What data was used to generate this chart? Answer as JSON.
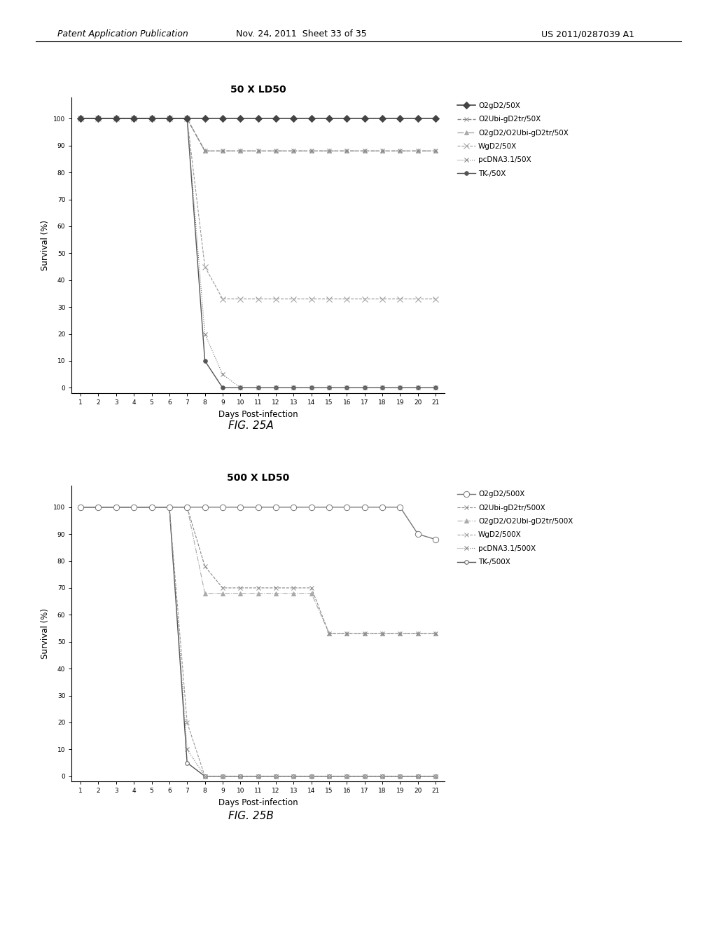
{
  "fig25a": {
    "title": "50 X LD50",
    "xlabel": "Days Post-infection",
    "ylabel": "Survival (%)",
    "days": [
      1,
      2,
      3,
      4,
      5,
      6,
      7,
      8,
      9,
      10,
      11,
      12,
      13,
      14,
      15,
      16,
      17,
      18,
      19,
      20,
      21
    ],
    "series": [
      {
        "label": "O2gD2/50X",
        "data": [
          100,
          100,
          100,
          100,
          100,
          100,
          100,
          100,
          100,
          100,
          100,
          100,
          100,
          100,
          100,
          100,
          100,
          100,
          100,
          100,
          100
        ],
        "color": "#444444",
        "marker": "D",
        "markersize": 5,
        "linestyle": "-",
        "linewidth": 1.2,
        "markerfacecolor": "#444444"
      },
      {
        "label": "O2Ubi-gD2tr/50X",
        "data": [
          100,
          100,
          100,
          100,
          100,
          100,
          100,
          88,
          88,
          88,
          88,
          88,
          88,
          88,
          88,
          88,
          88,
          88,
          88,
          88,
          88
        ],
        "color": "#888888",
        "marker": "x",
        "markersize": 5,
        "linestyle": "--",
        "linewidth": 1.0,
        "markerfacecolor": "#888888"
      },
      {
        "label": "O2gD2/O2Ubi-gD2tr/50X",
        "data": [
          100,
          100,
          100,
          100,
          100,
          100,
          100,
          88,
          88,
          88,
          88,
          88,
          88,
          88,
          88,
          88,
          88,
          88,
          88,
          88,
          88
        ],
        "color": "#aaaaaa",
        "marker": "^",
        "markersize": 5,
        "linestyle": "-.",
        "linewidth": 1.0,
        "markerfacecolor": "#aaaaaa"
      },
      {
        "label": "WgD2/50X",
        "data": [
          100,
          100,
          100,
          100,
          100,
          100,
          100,
          45,
          33,
          33,
          33,
          33,
          33,
          33,
          33,
          33,
          33,
          33,
          33,
          33,
          33
        ],
        "color": "#999999",
        "marker": "x",
        "markersize": 6,
        "linestyle": "--",
        "linewidth": 0.8,
        "markerfacecolor": "#999999"
      },
      {
        "label": "pcDNA3.1/50X",
        "data": [
          100,
          100,
          100,
          100,
          100,
          100,
          100,
          20,
          5,
          0,
          0,
          0,
          0,
          0,
          0,
          0,
          0,
          0,
          0,
          0,
          0
        ],
        "color": "#777777",
        "marker": "x",
        "markersize": 4,
        "linestyle": ":",
        "linewidth": 0.8,
        "markerfacecolor": "#777777"
      },
      {
        "label": "TK-/50X",
        "data": [
          100,
          100,
          100,
          100,
          100,
          100,
          100,
          10,
          0,
          0,
          0,
          0,
          0,
          0,
          0,
          0,
          0,
          0,
          0,
          0,
          0
        ],
        "color": "#555555",
        "marker": "o",
        "markersize": 4,
        "linestyle": "-",
        "linewidth": 1.0,
        "markerfacecolor": "#555555"
      }
    ]
  },
  "fig25b": {
    "title": "500 X LD50",
    "xlabel": "Days Post-infection",
    "ylabel": "Survival (%)",
    "days": [
      1,
      2,
      3,
      4,
      5,
      6,
      7,
      8,
      9,
      10,
      11,
      12,
      13,
      14,
      15,
      16,
      17,
      18,
      19,
      20,
      21
    ],
    "series": [
      {
        "label": "O2gD2/500X",
        "data": [
          100,
          100,
          100,
          100,
          100,
          100,
          100,
          100,
          100,
          100,
          100,
          100,
          100,
          100,
          100,
          100,
          100,
          100,
          100,
          90,
          88
        ],
        "color": "#777777",
        "marker": "o",
        "markersize": 6,
        "linestyle": "-",
        "linewidth": 1.0,
        "markerfacecolor": "white"
      },
      {
        "label": "O2Ubi-gD2tr/500X",
        "data": [
          100,
          100,
          100,
          100,
          100,
          100,
          100,
          78,
          70,
          70,
          70,
          70,
          70,
          70,
          53,
          53,
          53,
          53,
          53,
          53,
          53
        ],
        "color": "#888888",
        "marker": "x",
        "markersize": 5,
        "linestyle": "--",
        "linewidth": 0.8,
        "markerfacecolor": "#888888"
      },
      {
        "label": "O2gD2/O2Ubi-gD2tr/500X",
        "data": [
          100,
          100,
          100,
          100,
          100,
          100,
          100,
          68,
          68,
          68,
          68,
          68,
          68,
          68,
          53,
          53,
          53,
          53,
          53,
          53,
          53
        ],
        "color": "#aaaaaa",
        "marker": "^",
        "markersize": 5,
        "linestyle": "-.",
        "linewidth": 0.8,
        "markerfacecolor": "#aaaaaa"
      },
      {
        "label": "WgD2/500X",
        "data": [
          100,
          100,
          100,
          100,
          100,
          100,
          20,
          0,
          0,
          0,
          0,
          0,
          0,
          0,
          0,
          0,
          0,
          0,
          0,
          0,
          0
        ],
        "color": "#999999",
        "marker": "x",
        "markersize": 5,
        "linestyle": "--",
        "linewidth": 0.8,
        "markerfacecolor": "#999999"
      },
      {
        "label": "pcDNA3.1/500X",
        "data": [
          100,
          100,
          100,
          100,
          100,
          100,
          10,
          0,
          0,
          0,
          0,
          0,
          0,
          0,
          0,
          0,
          0,
          0,
          0,
          0,
          0
        ],
        "color": "#777777",
        "marker": "x",
        "markersize": 4,
        "linestyle": ":",
        "linewidth": 0.8,
        "markerfacecolor": "#777777"
      },
      {
        "label": "TK-/500X",
        "data": [
          100,
          100,
          100,
          100,
          100,
          100,
          5,
          0,
          0,
          0,
          0,
          0,
          0,
          0,
          0,
          0,
          0,
          0,
          0,
          0,
          0
        ],
        "color": "#555555",
        "marker": "o",
        "markersize": 4,
        "linestyle": "-",
        "linewidth": 1.0,
        "markerfacecolor": "white"
      }
    ]
  },
  "header_left": "Patent Application Publication",
  "header_mid": "Nov. 24, 2011  Sheet 33 of 35",
  "header_right": "US 2011/0287039 A1",
  "fig_label_a": "FIG. 25A",
  "fig_label_b": "FIG. 25B",
  "background_color": "#ffffff",
  "text_color": "#000000"
}
